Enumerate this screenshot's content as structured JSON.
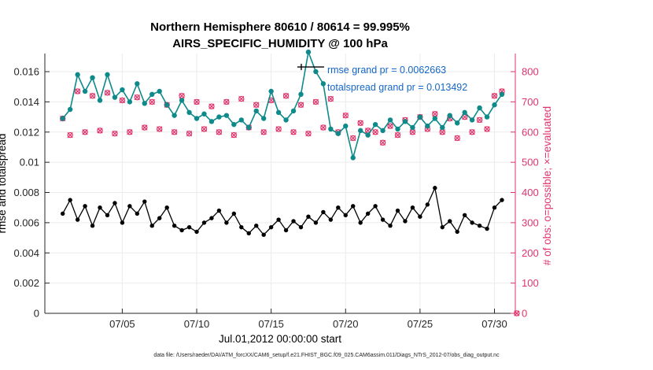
{
  "title": {
    "line1": "Northern Hemisphere 80610 / 80614 = 99.995%",
    "line2": "AIRS_SPECIFIC_HUMIDITY @ 100 hPa"
  },
  "axes": {
    "x_label": "Jul.01,2012 00:00:00 start",
    "left_label": "rmse and totalspread",
    "right_label": "# of obs: o=possible; ×=evaluated"
  },
  "annotations": {
    "rmse": "rmse grand pr = 0.0062663",
    "totalspread": "totalspread grand pr = 0.013492"
  },
  "caption": "data file: /Users/raeder/DAI/ATM_forcXX/CAM6_setup/f.e21.FHIST_BGC.f09_025.CAM6assim.011/Diags_NTrS_2012-07/obs_diag_output.nc",
  "colors": {
    "teal": "#0e8a8a",
    "rmse": "#000000",
    "obs": "#e0356b",
    "annotation_blue": "#1566c8",
    "grid": "#ebebeb",
    "axis": "#262626"
  },
  "chart_data": {
    "type": "line",
    "x_axis": {
      "min": -0.2,
      "max": 31.4,
      "ticks": [
        5,
        10,
        15,
        20,
        25,
        30
      ],
      "labels": [
        "07/05",
        "07/10",
        "07/15",
        "07/20",
        "07/25",
        "07/30"
      ]
    },
    "left_axis": {
      "min": 0,
      "max": 0.0172,
      "ticks": [
        0,
        0.002,
        0.004,
        0.006,
        0.008,
        0.01,
        0.012,
        0.014,
        0.016
      ],
      "labels": [
        "0",
        "0.002",
        "0.004",
        "0.006",
        "0.008",
        "0.01",
        "0.012",
        "0.014",
        "0.016"
      ]
    },
    "right_axis": {
      "min": 0,
      "max": 860,
      "ticks": [
        0,
        100,
        200,
        300,
        400,
        500,
        600,
        700,
        800
      ],
      "labels": [
        "0",
        "100",
        "200",
        "300",
        "400",
        "500",
        "600",
        "700",
        "800"
      ]
    },
    "x_points": {
      "start": 1,
      "step": 0.5,
      "count": 60,
      "unit": "days since Jul.01,2012 00:00"
    },
    "series": [
      {
        "name": "obs_possible",
        "axis": "right",
        "style": "scatter-o",
        "color": "#e0356b",
        "tail_point": {
          "x": 31.5,
          "y": 0
        },
        "values": [
          645,
          590,
          735,
          600,
          720,
          605,
          730,
          595,
          705,
          600,
          715,
          615,
          700,
          610,
          690,
          600,
          720,
          595,
          700,
          610,
          685,
          600,
          700,
          590,
          710,
          615,
          690,
          600,
          705,
          610,
          720,
          600,
          690,
          595,
          700,
          615,
          710,
          600,
          655,
          580,
          630,
          605,
          600,
          565,
          620,
          590,
          640,
          600,
          650,
          610,
          660,
          600,
          645,
          580,
          650,
          600,
          640,
          610,
          720,
          735
        ]
      },
      {
        "name": "obs_evaluated",
        "axis": "right",
        "style": "scatter-x",
        "color": "#e0356b",
        "tail_point": {
          "x": 31.5,
          "y": 0
        },
        "values": [
          645,
          590,
          735,
          600,
          720,
          605,
          730,
          595,
          705,
          600,
          715,
          615,
          700,
          610,
          690,
          600,
          720,
          595,
          700,
          610,
          685,
          600,
          700,
          590,
          710,
          615,
          690,
          600,
          705,
          610,
          720,
          600,
          690,
          595,
          700,
          615,
          710,
          600,
          655,
          580,
          630,
          605,
          600,
          565,
          620,
          590,
          640,
          600,
          650,
          610,
          660,
          600,
          645,
          580,
          650,
          600,
          640,
          610,
          720,
          735
        ]
      },
      {
        "name": "totalspread",
        "axis": "left",
        "style": "line-marker",
        "color": "#0e8a8a",
        "values": [
          0.0129,
          0.0135,
          0.0158,
          0.0147,
          0.0156,
          0.0141,
          0.0158,
          0.0143,
          0.0148,
          0.014,
          0.0152,
          0.0139,
          0.0145,
          0.0147,
          0.0138,
          0.0131,
          0.0141,
          0.0133,
          0.0129,
          0.0132,
          0.0127,
          0.013,
          0.0131,
          0.0125,
          0.0128,
          0.0123,
          0.0134,
          0.0129,
          0.0147,
          0.0133,
          0.0128,
          0.0134,
          0.0145,
          0.0173,
          0.016,
          0.0152,
          0.0122,
          0.0119,
          0.0124,
          0.0103,
          0.0121,
          0.0118,
          0.0125,
          0.0121,
          0.0128,
          0.0122,
          0.0127,
          0.0123,
          0.013,
          0.0124,
          0.0129,
          0.0123,
          0.0131,
          0.0126,
          0.0133,
          0.0128,
          0.0136,
          0.013,
          0.0138,
          0.0145
        ]
      },
      {
        "name": "rmse",
        "axis": "left",
        "style": "line-marker",
        "color": "#000000",
        "values": [
          0.0066,
          0.0075,
          0.0062,
          0.0071,
          0.0058,
          0.007,
          0.0065,
          0.0073,
          0.006,
          0.0071,
          0.0066,
          0.0074,
          0.0058,
          0.0063,
          0.007,
          0.0058,
          0.0055,
          0.0057,
          0.0054,
          0.006,
          0.0063,
          0.0068,
          0.006,
          0.0066,
          0.0057,
          0.0053,
          0.0058,
          0.0052,
          0.0057,
          0.0062,
          0.0055,
          0.0061,
          0.0057,
          0.0064,
          0.006,
          0.0067,
          0.0062,
          0.007,
          0.0065,
          0.0071,
          0.006,
          0.0066,
          0.0071,
          0.0062,
          0.0058,
          0.0068,
          0.0061,
          0.007,
          0.0064,
          0.0072,
          0.0083,
          0.0057,
          0.0061,
          0.0054,
          0.0065,
          0.006,
          0.0058,
          0.0056,
          0.007,
          0.0075
        ]
      }
    ]
  }
}
